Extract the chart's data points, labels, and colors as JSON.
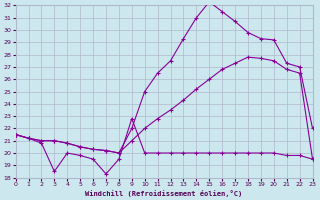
{
  "xlabel": "Windchill (Refroidissement éolien,°C)",
  "xlim": [
    0,
    23
  ],
  "ylim": [
    18,
    32
  ],
  "xticks": [
    0,
    1,
    2,
    3,
    4,
    5,
    6,
    7,
    8,
    9,
    10,
    11,
    12,
    13,
    14,
    15,
    16,
    17,
    18,
    19,
    20,
    21,
    22,
    23
  ],
  "yticks": [
    18,
    19,
    20,
    21,
    22,
    23,
    24,
    25,
    26,
    27,
    28,
    29,
    30,
    31,
    32
  ],
  "bg_color": "#cce8ee",
  "grid_color": "#b0b8cc",
  "line_color": "#880099",
  "line1_x": [
    0,
    1,
    2,
    3,
    4,
    5,
    6,
    7,
    8,
    9,
    10,
    11,
    12,
    13,
    14,
    15,
    16,
    17,
    18,
    19,
    20,
    21,
    22,
    23
  ],
  "line1_y": [
    21.5,
    21.2,
    20.8,
    18.5,
    20.0,
    19.8,
    19.5,
    18.3,
    19.5,
    22.8,
    20.0,
    20.0,
    20.0,
    20.0,
    20.0,
    20.0,
    20.0,
    20.0,
    20.0,
    20.0,
    20.0,
    19.8,
    19.8,
    19.5
  ],
  "line2_x": [
    0,
    1,
    2,
    3,
    4,
    5,
    6,
    7,
    8,
    9,
    10,
    11,
    12,
    13,
    14,
    15,
    16,
    17,
    18,
    19,
    20,
    21,
    22,
    23
  ],
  "line2_y": [
    21.5,
    21.2,
    21.0,
    21.0,
    20.8,
    20.5,
    20.3,
    20.2,
    20.0,
    22.0,
    25.0,
    26.5,
    27.5,
    29.3,
    31.0,
    32.3,
    31.5,
    30.7,
    29.8,
    29.3,
    29.2,
    27.3,
    27.0,
    22.0
  ],
  "line3_x": [
    0,
    1,
    2,
    3,
    4,
    5,
    6,
    7,
    8,
    9,
    10,
    11,
    12,
    13,
    14,
    15,
    16,
    17,
    18,
    19,
    20,
    21,
    22,
    23
  ],
  "line3_y": [
    21.5,
    21.2,
    21.0,
    21.0,
    20.8,
    20.5,
    20.3,
    20.2,
    20.0,
    21.0,
    22.0,
    22.8,
    23.5,
    24.3,
    25.2,
    26.0,
    26.8,
    27.3,
    27.8,
    27.7,
    27.5,
    26.8,
    26.5,
    19.5
  ]
}
